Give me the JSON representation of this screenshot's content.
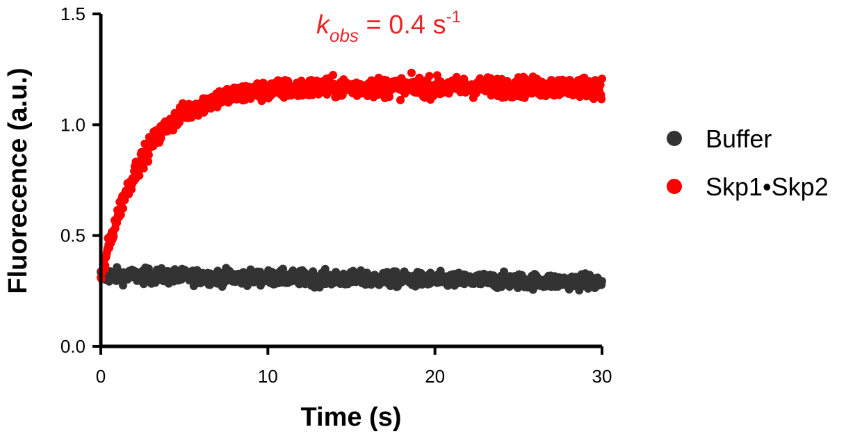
{
  "chart_data": {
    "type": "scatter",
    "title": "",
    "xlabel": "Time (s)",
    "ylabel": "Fluorecence (a.u.)",
    "xlim": [
      0,
      30
    ],
    "ylim": [
      0,
      1.5
    ],
    "x_ticks": [
      "0",
      "10",
      "20",
      "30"
    ],
    "y_ticks": [
      "0.0",
      "0.5",
      "1.0",
      "1.5"
    ],
    "grid": false,
    "legend_position": "right",
    "annotation": {
      "k": "k",
      "sub": "obs",
      "eq": " = 0.4 s",
      "sup": "-1",
      "color": "#e8262a"
    },
    "series": [
      {
        "name": "Buffer",
        "color": "#333333",
        "model": "linear",
        "start": 0.32,
        "end": 0.29,
        "noise": 0.03
      },
      {
        "name": "Skp1•Skp2",
        "color": "#ff0000",
        "model": "exponential-rise",
        "y0": 0.3,
        "plateau": 1.17,
        "k_obs": 0.4,
        "noise": 0.04
      }
    ],
    "samples_x": [
      0,
      30
    ]
  }
}
